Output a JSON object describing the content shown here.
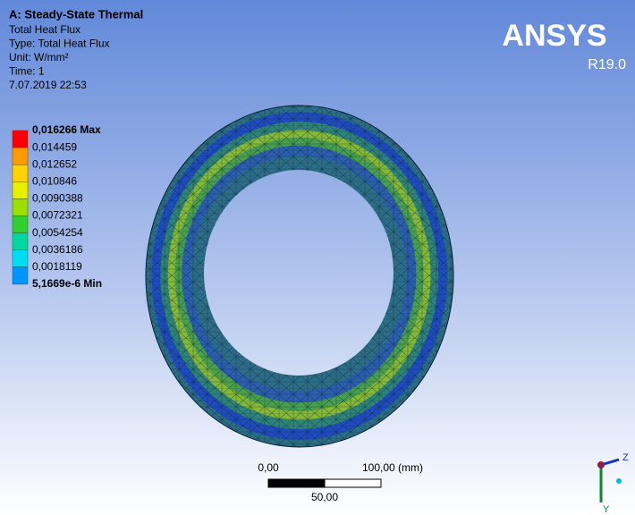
{
  "header": {
    "title": "A: Steady-State Thermal",
    "lines": [
      "Total Heat Flux",
      "Type: Total Heat Flux",
      "Unit: W/mm²",
      "Time: 1",
      "7.07.2019 22:53"
    ]
  },
  "logo": {
    "name": "ANSYS",
    "version": "R19.0"
  },
  "legend": {
    "labels": [
      "0,016266 Max",
      "0,014459",
      "0,012652",
      "0,010846",
      "0,0090388",
      "0,0072321",
      "0,0054254",
      "0,0036186",
      "0,0018119",
      "5,1669e-6 Min"
    ],
    "colors": [
      "#ff0000",
      "#ff9a00",
      "#ffd200",
      "#e8f000",
      "#9be000",
      "#2fd02f",
      "#00d8a0",
      "#00dcf0",
      "#0096ff",
      "#0000ff"
    ]
  },
  "scale_bar": {
    "start": "0,00",
    "end": "100,00 (mm)",
    "mid": "50,00"
  },
  "triad": {
    "z": "Z",
    "y": "Y"
  }
}
